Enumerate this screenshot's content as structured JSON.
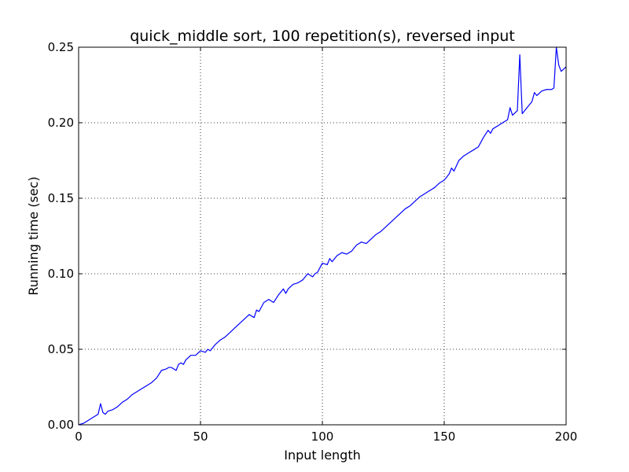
{
  "chart_data": {
    "type": "line",
    "title": "quick_middle sort, 100 repetition(s), reversed input",
    "xlabel": "Input length",
    "ylabel": "Running time (sec)",
    "xlim": [
      0,
      200
    ],
    "ylim": [
      0,
      0.25
    ],
    "xticks": [
      "0",
      "50",
      "100",
      "150",
      "200"
    ],
    "yticks": [
      "0.00",
      "0.05",
      "0.10",
      "0.15",
      "0.20",
      "0.25"
    ],
    "grid": true,
    "line_color": "#0000ff",
    "series": [
      {
        "x": [
          0,
          2,
          4,
          6,
          7,
          8,
          9,
          10,
          11,
          12,
          14,
          16,
          18,
          20,
          22,
          24,
          26,
          28,
          30,
          32,
          34,
          36,
          37,
          38,
          40,
          41,
          42,
          43,
          44,
          46,
          48,
          50,
          52,
          53,
          54,
          56,
          58,
          60,
          62,
          64,
          66,
          68,
          70,
          72,
          73,
          74,
          76,
          78,
          80,
          82,
          84,
          85,
          86,
          88,
          90,
          92,
          94,
          96,
          97,
          98,
          100,
          102,
          103,
          104,
          106,
          108,
          110,
          112,
          114,
          115,
          116,
          118,
          120,
          122,
          124,
          126,
          128,
          130,
          132,
          134,
          136,
          138,
          140,
          142,
          144,
          146,
          148,
          150,
          152,
          153,
          154,
          156,
          158,
          160,
          162,
          164,
          166,
          168,
          169,
          170,
          172,
          174,
          176,
          177,
          178,
          180,
          181,
          182,
          184,
          186,
          187,
          188,
          190,
          192,
          194,
          195,
          196,
          197,
          198,
          200
        ],
        "y": [
          0.0,
          0.001,
          0.003,
          0.005,
          0.006,
          0.007,
          0.014,
          0.008,
          0.007,
          0.009,
          0.01,
          0.012,
          0.015,
          0.017,
          0.02,
          0.022,
          0.024,
          0.026,
          0.028,
          0.031,
          0.036,
          0.037,
          0.038,
          0.038,
          0.036,
          0.04,
          0.041,
          0.04,
          0.043,
          0.046,
          0.046,
          0.049,
          0.048,
          0.05,
          0.049,
          0.053,
          0.056,
          0.058,
          0.061,
          0.064,
          0.067,
          0.07,
          0.073,
          0.071,
          0.076,
          0.075,
          0.081,
          0.083,
          0.081,
          0.086,
          0.09,
          0.087,
          0.09,
          0.093,
          0.094,
          0.096,
          0.1,
          0.098,
          0.1,
          0.101,
          0.107,
          0.106,
          0.11,
          0.108,
          0.112,
          0.114,
          0.113,
          0.115,
          0.119,
          0.12,
          0.121,
          0.12,
          0.123,
          0.126,
          0.128,
          0.131,
          0.134,
          0.137,
          0.14,
          0.143,
          0.145,
          0.148,
          0.151,
          0.153,
          0.155,
          0.157,
          0.16,
          0.162,
          0.166,
          0.17,
          0.168,
          0.175,
          0.178,
          0.18,
          0.182,
          0.184,
          0.19,
          0.195,
          0.193,
          0.196,
          0.198,
          0.2,
          0.202,
          0.21,
          0.205,
          0.208,
          0.245,
          0.206,
          0.21,
          0.214,
          0.22,
          0.218,
          0.221,
          0.222,
          0.222,
          0.223,
          0.25,
          0.238,
          0.234,
          0.237
        ]
      }
    ]
  }
}
